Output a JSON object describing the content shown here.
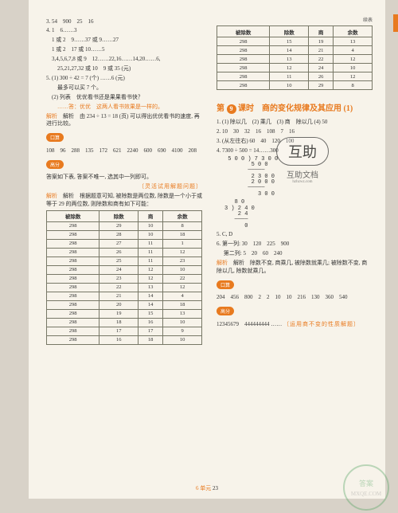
{
  "leftCol": {
    "topLines": [
      "3. 54　900　25　16",
      "4. 1　6……3",
      "　1 或 2　9……37 或 9……27",
      "　1 或 2　17 或 10……5",
      "　3,4,5,6,7,8 或 9　12……22,16……14,20……6,",
      "　　25,21,27,32 或 10　9 或 35 (元)",
      "5. (1) 300 ÷ 42 = 7 (个) ……6 (元)",
      "　　最多可以买 7 个。",
      "　(2) 列表　优优看书还是果果看书快？"
    ],
    "answerLine": "　　……答：优优　这两人看书效果是一样的。",
    "analysis": "解析　由 234 ÷ 13 = 18 (页) 可以得出优优看书的速度, 再进行比较。",
    "badge1": "口算",
    "kousuanLine": "108　96　288　135　172　621　2240　600　690　4100　208",
    "badge2": "高分",
    "gaofenLine": "答案如下表, 答案不唯一, 选其中一列即可。",
    "dottedNote": "〔灵活试用解题问题〕",
    "analysis2": "解析　根据题意可知, 被除数是两位数, 除数是一个小于或等于 29 的两位数, 则除数和商有如下可能：",
    "tableHeaders": [
      "被除数",
      "除数",
      "商",
      "余数"
    ],
    "tableRows": [
      [
        "298",
        "29",
        "10",
        "8"
      ],
      [
        "298",
        "28",
        "10",
        "18"
      ],
      [
        "298",
        "27",
        "11",
        "1"
      ],
      [
        "298",
        "26",
        "11",
        "12"
      ],
      [
        "298",
        "25",
        "11",
        "23"
      ],
      [
        "298",
        "24",
        "12",
        "10"
      ],
      [
        "298",
        "23",
        "12",
        "22"
      ],
      [
        "298",
        "22",
        "13",
        "12"
      ],
      [
        "298",
        "21",
        "14",
        "4"
      ],
      [
        "298",
        "20",
        "14",
        "18"
      ],
      [
        "298",
        "19",
        "15",
        "13"
      ],
      [
        "298",
        "18",
        "16",
        "10"
      ],
      [
        "298",
        "17",
        "17",
        "9"
      ],
      [
        "298",
        "16",
        "18",
        "10"
      ]
    ]
  },
  "rightCol": {
    "xubiao": "续表",
    "tableHeaders": [
      "被除数",
      "除数",
      "商",
      "余数"
    ],
    "tableRows": [
      [
        "298",
        "15",
        "19",
        "13"
      ],
      [
        "298",
        "14",
        "21",
        "4"
      ],
      [
        "298",
        "13",
        "22",
        "12"
      ],
      [
        "298",
        "12",
        "24",
        "10"
      ],
      [
        "298",
        "11",
        "26",
        "12"
      ],
      [
        "298",
        "10",
        "29",
        "8"
      ]
    ],
    "sectionTitle": "第　课时　商的变化规律及其应用 (1)",
    "sectionNum": "9",
    "lines1": [
      "1. (1) 除以几　(2) 乘几　(3) 商　除以几 (4) 50",
      "2. 10　30　32　16　108　7　16",
      "3. (从左往右) 60　40　120　100",
      "4. 7300 ÷ 500 = 14……300"
    ],
    "calc": " 5 0 0 ) 7 3 0 0\n        5 0 0\n       ─────\n        2 3 0 0\n        2 0 0 0\n       ─────\n          3 0 0",
    "calc2": "   8 0\n3 ) 2 4 0\n    2 4\n   ────\n      0",
    "lines2": [
      "5. C, D",
      "6. 第一列: 30　120　225　900",
      "　 第二列: 5　20　60　240"
    ],
    "analysis": "解析　除数不变, 商乘几, 被除数就乘几; 被除数不变, 商除以几, 除数就乘几。",
    "badge1": "口算",
    "kousuanLine": "204　456　800　2　2　10　10　216　130　360　540",
    "badge2": "高分",
    "gaofenLine": "12345679　444444444 ……",
    "dottedNote": "〔运用商不变的性质解题〕"
  },
  "footer": {
    "unit": "6 单元",
    "page": "23"
  },
  "watermark": {
    "main": "互助",
    "sub": "互助文档",
    "url": "hzhzwz.com"
  }
}
